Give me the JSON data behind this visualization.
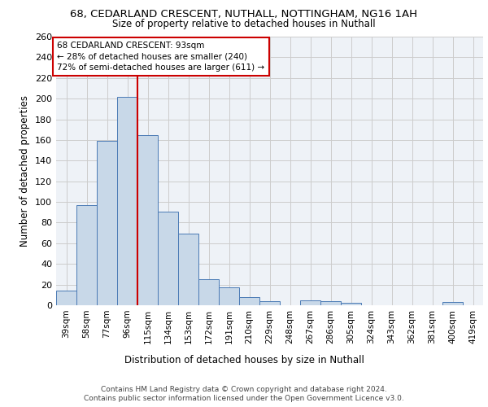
{
  "title_line1": "68, CEDARLAND CRESCENT, NUTHALL, NOTTINGHAM, NG16 1AH",
  "title_line2": "Size of property relative to detached houses in Nuthall",
  "xlabel": "Distribution of detached houses by size in Nuthall",
  "ylabel": "Number of detached properties",
  "bar_labels": [
    "39sqm",
    "58sqm",
    "77sqm",
    "96sqm",
    "115sqm",
    "134sqm",
    "153sqm",
    "172sqm",
    "191sqm",
    "210sqm",
    "229sqm",
    "248sqm",
    "267sqm",
    "286sqm",
    "305sqm",
    "324sqm",
    "343sqm",
    "362sqm",
    "381sqm",
    "400sqm",
    "419sqm"
  ],
  "bar_values": [
    14,
    97,
    159,
    202,
    165,
    91,
    69,
    25,
    17,
    8,
    4,
    0,
    5,
    4,
    2,
    0,
    0,
    0,
    0,
    3,
    0
  ],
  "bar_color": "#c8d8e8",
  "bar_edge_color": "#4a7ab5",
  "grid_color": "#cccccc",
  "background_color": "#eef2f7",
  "red_line_index": 3,
  "annotation_text": "68 CEDARLAND CRESCENT: 93sqm\n← 28% of detached houses are smaller (240)\n72% of semi-detached houses are larger (611) →",
  "annotation_box_color": "#ffffff",
  "annotation_box_edge": "#cc0000",
  "red_line_color": "#cc0000",
  "ylim": [
    0,
    260
  ],
  "yticks": [
    0,
    20,
    40,
    60,
    80,
    100,
    120,
    140,
    160,
    180,
    200,
    220,
    240,
    260
  ],
  "footer_line1": "Contains HM Land Registry data © Crown copyright and database right 2024.",
  "footer_line2": "Contains public sector information licensed under the Open Government Licence v3.0."
}
